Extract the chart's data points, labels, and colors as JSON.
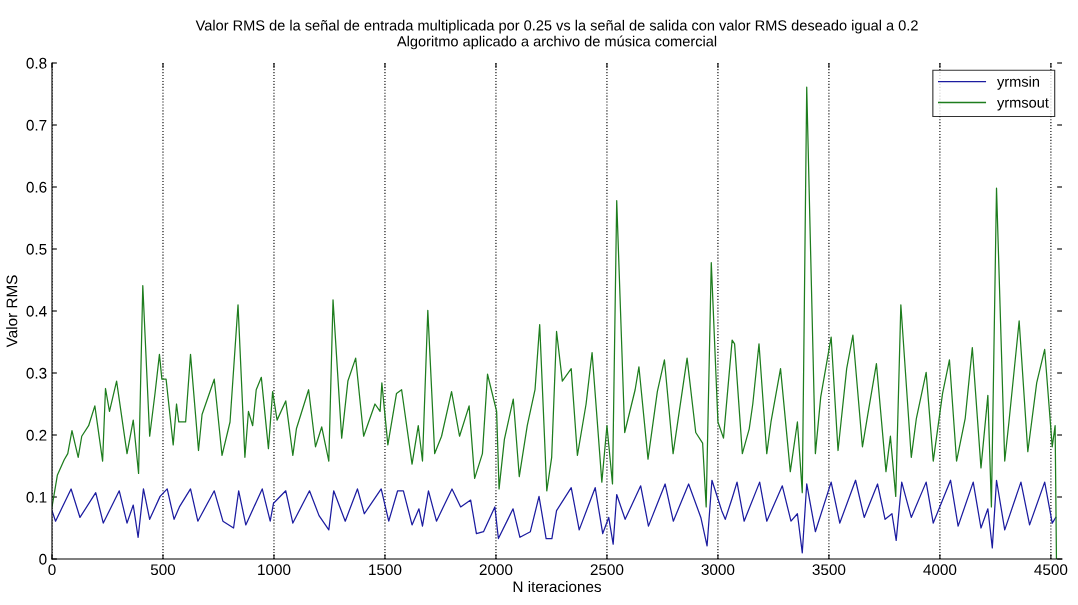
{
  "chart_data": {
    "type": "line",
    "title": "Valor RMS de la señal de entrada multiplicada por 0.25 vs la señal de salida con valor RMS deseado igual a 0.2",
    "subtitle": "Algoritmo aplicado a archivo de música comercial",
    "xlabel": "N iteraciones",
    "ylabel": "Valor RMS",
    "xlim": [
      0,
      4550
    ],
    "ylim": [
      0,
      0.8
    ],
    "xticks": [
      0,
      500,
      1000,
      1500,
      2000,
      2500,
      3000,
      3500,
      4000,
      4500
    ],
    "yticks": [
      0,
      0.1,
      0.2,
      0.3,
      0.4,
      0.5,
      0.6,
      0.7,
      0.8
    ],
    "grid": "x",
    "legend": "top right",
    "line_style": "solid",
    "marker": "none",
    "series": [
      {
        "name": "yrmsin",
        "color": "#1c1ca0",
        "x": [
          0,
          16,
          86,
          126,
          197,
          231,
          303,
          338,
          366,
          388,
          412,
          440,
          487,
          519,
          550,
          574,
          624,
          657,
          731,
          770,
          818,
          841,
          873,
          947,
          983,
          998,
          1053,
          1085,
          1160,
          1203,
          1247,
          1269,
          1321,
          1376,
          1407,
          1483,
          1517,
          1557,
          1583,
          1622,
          1653,
          1669,
          1696,
          1732,
          1802,
          1841,
          1886,
          1912,
          1944,
          1995,
          2011,
          2077,
          2108,
          2155,
          2194,
          2226,
          2252,
          2273,
          2339,
          2375,
          2447,
          2481,
          2508,
          2528,
          2544,
          2582,
          2652,
          2687,
          2762,
          2799,
          2868,
          2923,
          2951,
          2973,
          3017,
          3033,
          3064,
          3086,
          3118,
          3188,
          3220,
          3290,
          3329,
          3358,
          3380,
          3400,
          3439,
          3510,
          3549,
          3620,
          3659,
          3719,
          3753,
          3784,
          3803,
          3828,
          3871,
          3938,
          3970,
          4048,
          4082,
          4150,
          4185,
          4216,
          4236,
          4255,
          4292,
          4365,
          4404,
          4472,
          4506,
          4522
        ],
        "values": [
          0.078,
          0.061,
          0.113,
          0.067,
          0.107,
          0.058,
          0.11,
          0.058,
          0.087,
          0.035,
          0.113,
          0.064,
          0.101,
          0.113,
          0.064,
          0.084,
          0.113,
          0.061,
          0.11,
          0.061,
          0.05,
          0.11,
          0.055,
          0.113,
          0.061,
          0.09,
          0.11,
          0.058,
          0.11,
          0.07,
          0.047,
          0.11,
          0.061,
          0.113,
          0.073,
          0.113,
          0.061,
          0.11,
          0.11,
          0.055,
          0.081,
          0.053,
          0.11,
          0.061,
          0.113,
          0.084,
          0.095,
          0.041,
          0.044,
          0.084,
          0.033,
          0.081,
          0.035,
          0.044,
          0.101,
          0.033,
          0.033,
          0.078,
          0.115,
          0.047,
          0.115,
          0.041,
          0.067,
          0.024,
          0.104,
          0.064,
          0.118,
          0.053,
          0.121,
          0.061,
          0.121,
          0.067,
          0.021,
          0.127,
          0.078,
          0.064,
          0.098,
          0.124,
          0.061,
          0.124,
          0.061,
          0.118,
          0.061,
          0.073,
          0.01,
          0.121,
          0.044,
          0.124,
          0.058,
          0.127,
          0.067,
          0.121,
          0.064,
          0.073,
          0.03,
          0.124,
          0.067,
          0.124,
          0.058,
          0.127,
          0.053,
          0.124,
          0.05,
          0.081,
          0.018,
          0.127,
          0.047,
          0.124,
          0.055,
          0.124,
          0.058,
          0.067
        ]
      },
      {
        "name": "yrmsout",
        "color": "#1e7d1e",
        "x": [
          0,
          24,
          55,
          71,
          90,
          118,
          134,
          165,
          193,
          228,
          241,
          259,
          291,
          338,
          366,
          390,
          409,
          440,
          464,
          484,
          495,
          514,
          546,
          561,
          571,
          602,
          624,
          660,
          676,
          731,
          766,
          802,
          838,
          869,
          885,
          904,
          920,
          943,
          975,
          994,
          1014,
          1053,
          1085,
          1101,
          1156,
          1187,
          1215,
          1247,
          1266,
          1305,
          1333,
          1368,
          1404,
          1455,
          1478,
          1486,
          1513,
          1552,
          1575,
          1622,
          1650,
          1669,
          1693,
          1724,
          1755,
          1800,
          1836,
          1879,
          1904,
          1939,
          1962,
          2003,
          2014,
          2038,
          2078,
          2105,
          2141,
          2176,
          2197,
          2229,
          2251,
          2273,
          2299,
          2339,
          2367,
          2406,
          2433,
          2477,
          2500,
          2525,
          2544,
          2580,
          2627,
          2644,
          2685,
          2727,
          2759,
          2798,
          2861,
          2900,
          2931,
          2947,
          2970,
          3000,
          3025,
          3064,
          3075,
          3110,
          3141,
          3157,
          3185,
          3220,
          3239,
          3282,
          3326,
          3358,
          3380,
          3400,
          3439,
          3463,
          3510,
          3541,
          3580,
          3608,
          3651,
          3675,
          3714,
          3757,
          3777,
          3801,
          3824,
          3871,
          3894,
          3938,
          3970,
          4012,
          4043,
          4075,
          4114,
          4146,
          4185,
          4216,
          4232,
          4255,
          4292,
          4311,
          4357,
          4396,
          4436,
          4472,
          4506,
          4519,
          4525
        ],
        "values": [
          0.084,
          0.135,
          0.16,
          0.17,
          0.207,
          0.164,
          0.198,
          0.215,
          0.247,
          0.158,
          0.275,
          0.238,
          0.287,
          0.17,
          0.224,
          0.138,
          0.441,
          0.198,
          0.267,
          0.33,
          0.29,
          0.29,
          0.184,
          0.25,
          0.221,
          0.221,
          0.33,
          0.175,
          0.233,
          0.29,
          0.167,
          0.221,
          0.41,
          0.164,
          0.238,
          0.215,
          0.273,
          0.293,
          0.178,
          0.27,
          0.224,
          0.255,
          0.167,
          0.21,
          0.273,
          0.181,
          0.213,
          0.158,
          0.418,
          0.195,
          0.287,
          0.324,
          0.198,
          0.25,
          0.238,
          0.284,
          0.184,
          0.267,
          0.273,
          0.153,
          0.215,
          0.158,
          0.401,
          0.17,
          0.198,
          0.27,
          0.198,
          0.247,
          0.13,
          0.17,
          0.298,
          0.238,
          0.113,
          0.193,
          0.258,
          0.133,
          0.215,
          0.273,
          0.378,
          0.11,
          0.164,
          0.367,
          0.287,
          0.307,
          0.167,
          0.25,
          0.333,
          0.124,
          0.215,
          0.121,
          0.578,
          0.204,
          0.273,
          0.31,
          0.161,
          0.27,
          0.321,
          0.17,
          0.324,
          0.204,
          0.187,
          0.084,
          0.478,
          0.221,
          0.195,
          0.353,
          0.347,
          0.17,
          0.21,
          0.25,
          0.347,
          0.17,
          0.221,
          0.307,
          0.141,
          0.221,
          0.107,
          0.761,
          0.17,
          0.261,
          0.358,
          0.175,
          0.307,
          0.361,
          0.181,
          0.233,
          0.315,
          0.141,
          0.198,
          0.101,
          0.41,
          0.164,
          0.227,
          0.301,
          0.158,
          0.267,
          0.321,
          0.158,
          0.227,
          0.341,
          0.147,
          0.264,
          0.084,
          0.598,
          0.158,
          0.221,
          0.384,
          0.173,
          0.284,
          0.338,
          0.181,
          0.215,
          0
        ]
      }
    ]
  }
}
